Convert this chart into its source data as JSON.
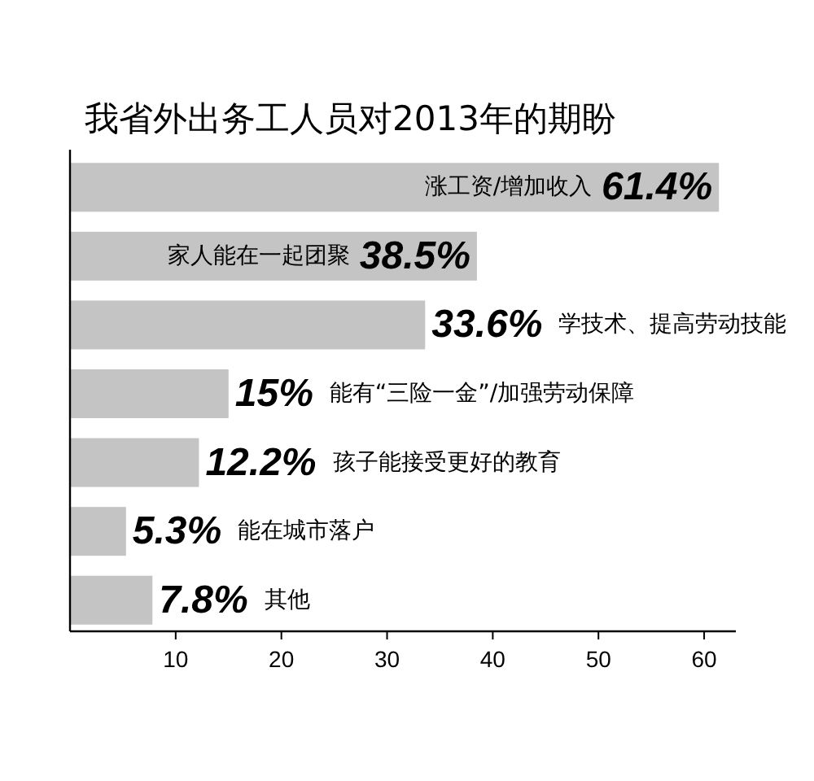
{
  "chart_data": {
    "type": "bar",
    "orientation": "horizontal",
    "title": "我省外出务工人员对2013年的期盼",
    "categories": [
      "涨工资/增加收入",
      "家人能在一起团聚",
      "学技术、提高劳动技能",
      "能有“三险一金”/加强劳动保障",
      "孩子能接受更好的教育",
      "能在城市落户",
      "其他"
    ],
    "values": [
      61.4,
      38.5,
      33.6,
      15,
      12.2,
      5.3,
      7.8
    ],
    "value_labels": [
      "61.4%",
      "38.5%",
      "33.6%",
      "15%",
      "12.2%",
      "5.3%",
      "7.8%"
    ],
    "color": "#c4c4c4",
    "xlim": [
      0,
      63
    ],
    "xticks": [
      10,
      20,
      30,
      40,
      50,
      60
    ]
  }
}
